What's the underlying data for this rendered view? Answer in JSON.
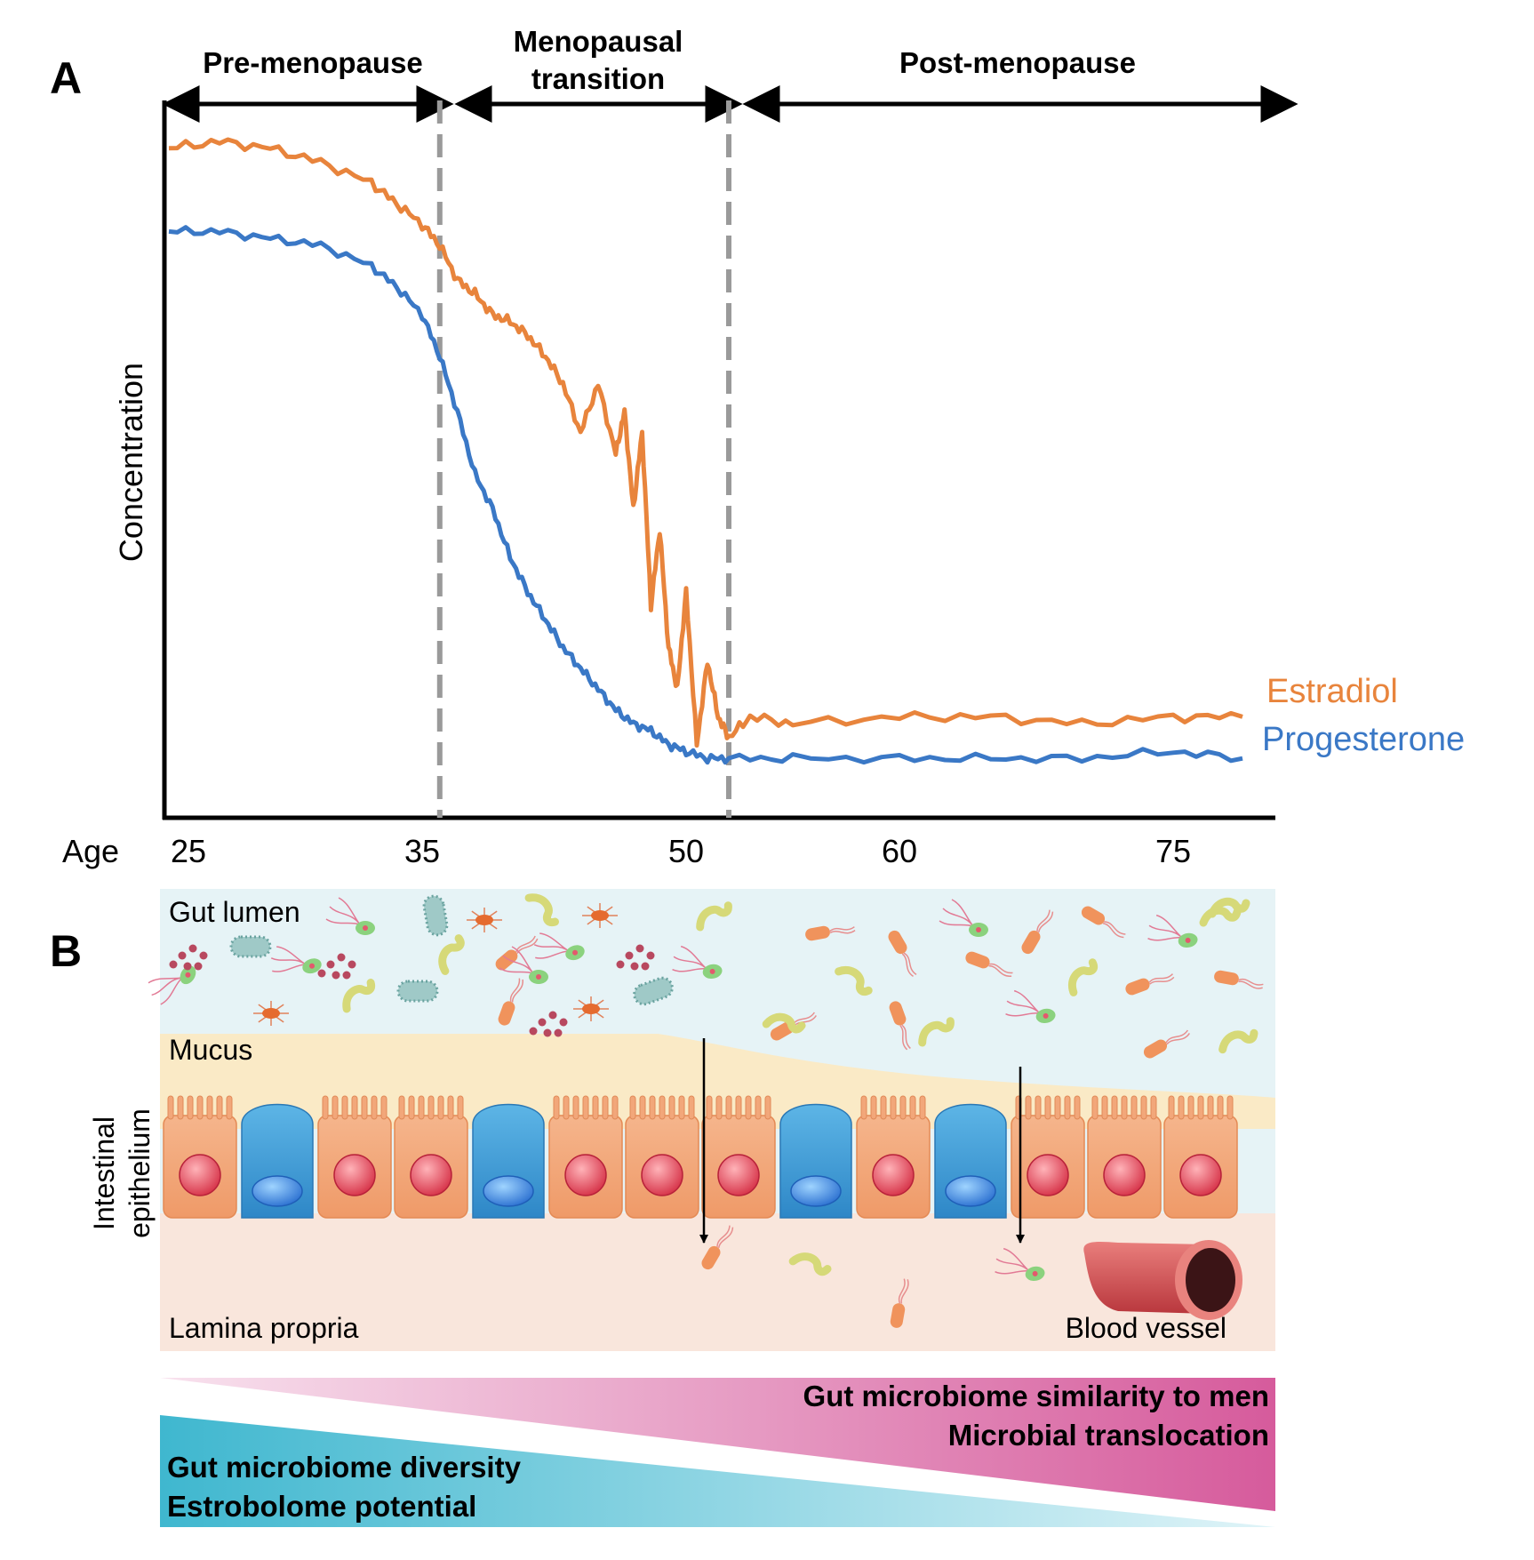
{
  "panel_a": {
    "letter": "A",
    "phases": [
      "Pre-menopause",
      "Menopausal",
      "transition",
      "Post-menopause"
    ],
    "y_label": "Concentration",
    "x_label": "Age",
    "x_ticks": [
      "25",
      "35",
      "50",
      "60",
      "75"
    ],
    "legend": {
      "estradiol": "Estradiol",
      "progesterone": "Progesterone"
    }
  },
  "panel_b": {
    "letter": "B",
    "layers": {
      "lumen": "Gut lumen",
      "mucus": "Mucus",
      "epithelium_line1": "Intestinal",
      "epithelium_line2": "epithelium",
      "lamina": "Lamina propria",
      "vessel": "Blood vessel"
    },
    "gradient_pink": [
      "Gut microbiome similarity to men",
      "Microbial translocation"
    ],
    "gradient_blue": [
      "Gut microbiome diversity",
      "Estrobolome potential"
    ]
  },
  "colors": {
    "estradiol": "#e8843c",
    "progesterone": "#3a78c6",
    "lumen_bg": "#e6f3f6",
    "mucus_bg": "#faeac6",
    "lamina_bg": "#f9e6dc",
    "enterocyte": "#f2a77a",
    "goblet": "#3f9fd6",
    "pink_grad": "#d65b9c",
    "blue_grad": "#3fb7cf"
  },
  "chart_data": {
    "type": "line",
    "title": "",
    "xlabel": "Age",
    "ylabel": "Concentration",
    "x_ticks": [
      25,
      35,
      50,
      60,
      75
    ],
    "phase_boundaries": [
      36,
      52
    ],
    "series": [
      {
        "name": "Estradiol",
        "x": [
          25,
          27,
          29,
          31,
          33,
          34,
          35,
          36,
          37,
          38,
          39,
          40,
          41,
          42,
          43,
          44,
          45,
          46,
          46.5,
          47,
          47.5,
          48,
          48.5,
          49,
          49.5,
          50,
          50.5,
          51,
          51.5,
          52,
          53,
          55,
          60,
          65,
          70,
          75,
          78
        ],
        "y": [
          0.94,
          0.95,
          0.94,
          0.92,
          0.89,
          0.86,
          0.83,
          0.8,
          0.75,
          0.73,
          0.7,
          0.69,
          0.67,
          0.64,
          0.6,
          0.53,
          0.6,
          0.5,
          0.56,
          0.42,
          0.53,
          0.28,
          0.39,
          0.22,
          0.16,
          0.3,
          0.08,
          0.2,
          0.12,
          0.09,
          0.12,
          0.11,
          0.12,
          0.12,
          0.11,
          0.12,
          0.12
        ]
      },
      {
        "name": "Progesterone",
        "x": [
          25,
          27,
          29,
          31,
          33,
          34,
          35,
          36,
          37,
          38,
          39,
          40,
          41,
          42,
          43,
          44,
          45,
          46,
          47,
          48,
          49,
          50,
          51,
          52,
          55,
          60,
          65,
          70,
          75,
          78
        ],
        "y": [
          0.82,
          0.82,
          0.81,
          0.8,
          0.77,
          0.74,
          0.7,
          0.64,
          0.56,
          0.47,
          0.42,
          0.35,
          0.3,
          0.26,
          0.22,
          0.19,
          0.16,
          0.13,
          0.11,
          0.1,
          0.08,
          0.07,
          0.06,
          0.06,
          0.06,
          0.06,
          0.06,
          0.06,
          0.07,
          0.06
        ]
      }
    ],
    "ylim": [
      0,
      1
    ]
  }
}
